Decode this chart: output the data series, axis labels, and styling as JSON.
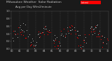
{
  "title": "Milwaukee Weather  Solar Radiation",
  "subtitle": "Avg per Day W/m2/minute",
  "background_color": "#1a1a1a",
  "plot_bg_color": "#1a1a1a",
  "title_color": "#cccccc",
  "red_color": "#ff0000",
  "black_color": "#888888",
  "dot_color": "#aaaaaa",
  "grid_color": "#555555",
  "ylim": [
    0,
    1.0
  ],
  "num_years": 12,
  "legend_label": "Latest",
  "x_ticks": [
    "00",
    "01",
    "02",
    "03",
    "04",
    "05",
    "06",
    "07",
    "08",
    "09",
    "10",
    "11",
    "12"
  ],
  "y_ticks": [
    0.0,
    0.2,
    0.4,
    0.6,
    0.8,
    1.0
  ],
  "total_points": 130
}
